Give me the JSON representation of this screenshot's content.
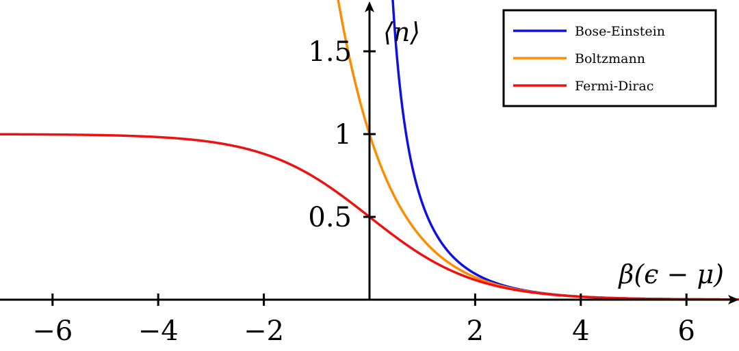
{
  "chart_data": {
    "type": "line",
    "title": "",
    "xlabel": "β(ϵ − μ)",
    "ylabel": "⟨n⟩",
    "xlim": [
      -7,
      7
    ],
    "ylim": [
      0,
      1.78
    ],
    "x_ticks": [
      -6,
      -4,
      -2,
      2,
      4,
      6
    ],
    "x_tick_labels": [
      "−6",
      "−4",
      "−2",
      "2",
      "4",
      "6"
    ],
    "y_ticks": [
      0.5,
      1,
      1.5
    ],
    "y_tick_labels": [
      "0.5",
      "1",
      "1.5"
    ],
    "legend_position": "top-right",
    "series": [
      {
        "name": "Bose-Einstein",
        "color": "#1010e0",
        "formula": "1/(exp(x)-1)",
        "x_range": [
          0.05,
          7
        ]
      },
      {
        "name": "Boltzmann",
        "color": "#ff8c00",
        "formula": "exp(-x)",
        "x_range": [
          -0.6,
          7
        ]
      },
      {
        "name": "Fermi-Dirac",
        "color": "#ee1111",
        "formula": "1/(exp(x)+1)",
        "x_range": [
          -7,
          7
        ]
      }
    ]
  }
}
